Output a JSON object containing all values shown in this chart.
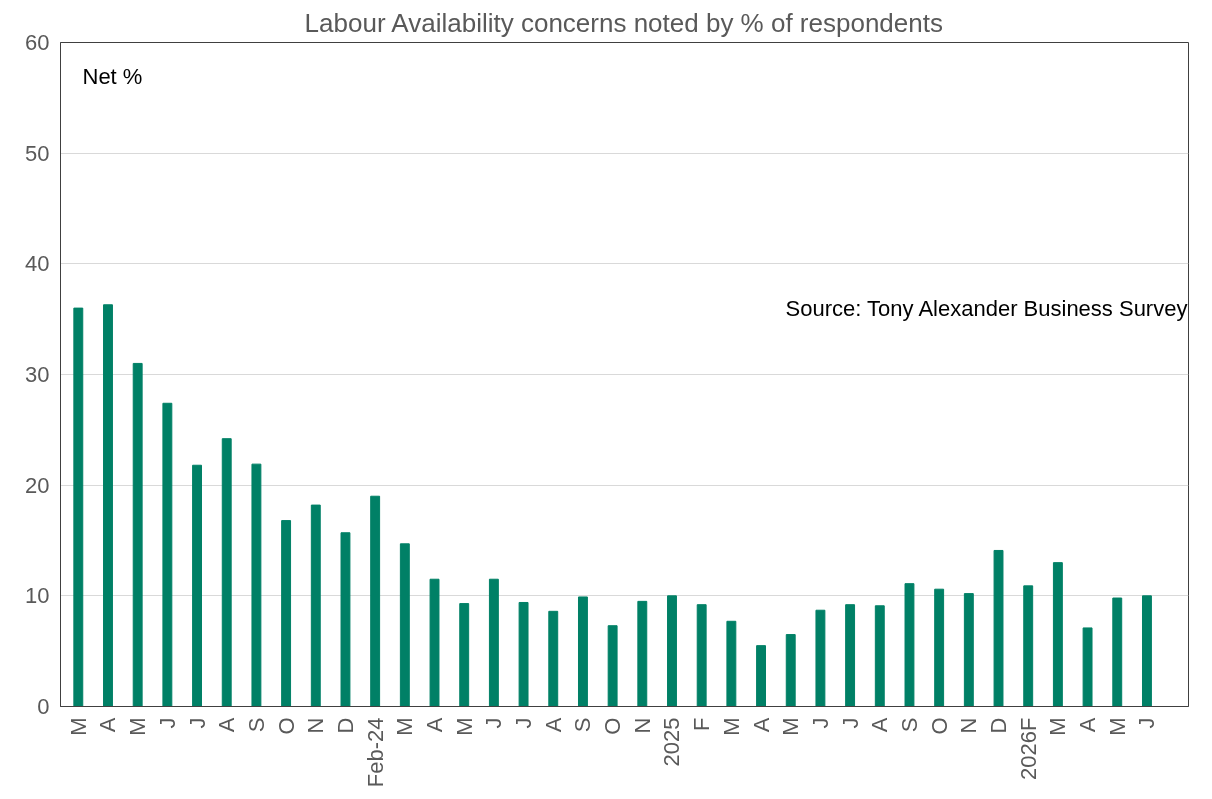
{
  "chart_data": {
    "type": "bar",
    "title": "Labour Availability concerns noted by % of respondents",
    "categories": [
      "M",
      "A",
      "M",
      "J",
      "J",
      "A",
      "S",
      "O",
      "N",
      "D",
      "Feb-24",
      "M",
      "A",
      "M",
      "J",
      "J",
      "A",
      "S",
      "O",
      "N",
      "2025",
      "F",
      "M",
      "A",
      "M",
      "J",
      "J",
      "A",
      "S",
      "O",
      "N",
      "D",
      "2026F",
      "M",
      "A",
      "M",
      "J"
    ],
    "values": [
      36,
      36.3,
      31,
      27.4,
      21.8,
      24.2,
      21.9,
      16.8,
      18.2,
      15.7,
      19,
      14.7,
      11.5,
      9.3,
      11.5,
      9.4,
      8.6,
      9.9,
      7.3,
      9.5,
      10,
      9.2,
      7.7,
      5.5,
      6.5,
      8.7,
      9.2,
      9.1,
      11.1,
      10.6,
      10.2,
      14.1,
      10.9,
      13,
      7.1,
      9.8,
      10
    ],
    "color": "#008066",
    "ylim": [
      0,
      60
    ],
    "yticks": [
      0,
      10,
      20,
      30,
      40,
      50,
      60
    ],
    "grid": "y",
    "annotations": [
      "Net %",
      "Source: Tony Alexander Business Survey"
    ]
  }
}
